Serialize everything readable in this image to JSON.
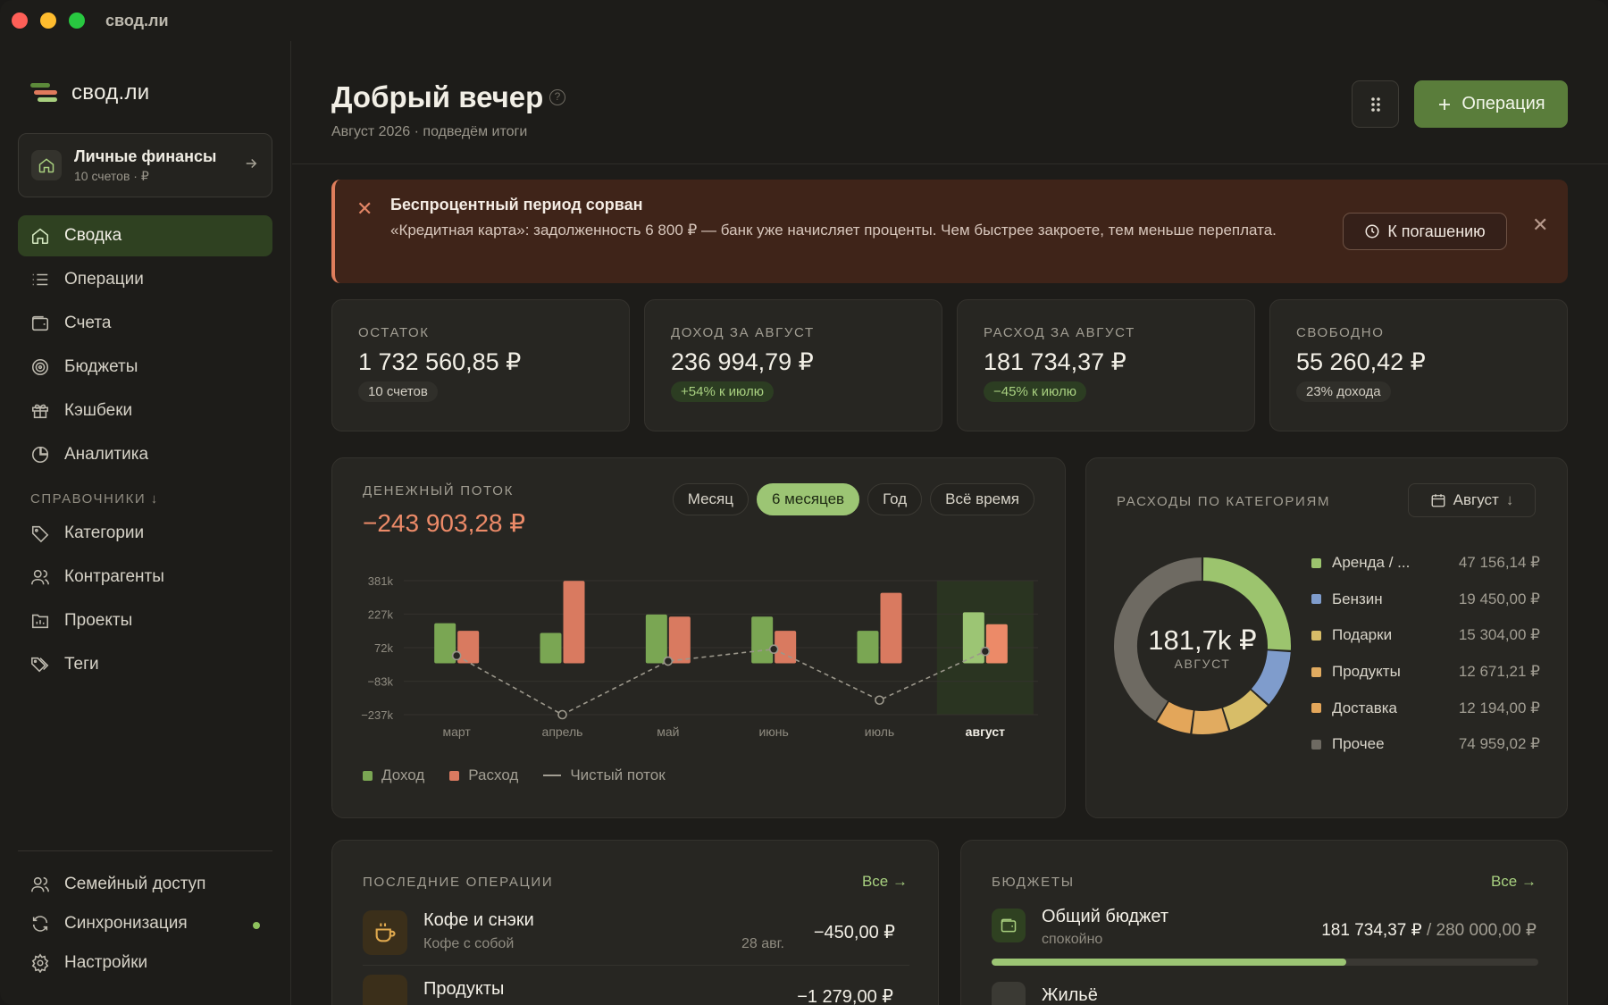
{
  "window": {
    "title": "свод.ли"
  },
  "sidebar": {
    "logo": "свод.ли",
    "workspace": {
      "title": "Личные финансы",
      "subtitle": "10 счетов · ₽"
    },
    "items": [
      {
        "label": "Сводка",
        "icon": "home-icon"
      },
      {
        "label": "Операции",
        "icon": "list-icon"
      },
      {
        "label": "Счета",
        "icon": "wallet-icon"
      },
      {
        "label": "Бюджеты",
        "icon": "target-icon"
      },
      {
        "label": "Кэшбеки",
        "icon": "gift-icon"
      },
      {
        "label": "Аналитика",
        "icon": "pie-icon"
      }
    ],
    "section_label": "СПРАВОЧНИКИ",
    "ref_items": [
      {
        "label": "Категории",
        "icon": "tag-icon"
      },
      {
        "label": "Контрагенты",
        "icon": "users-icon"
      },
      {
        "label": "Проекты",
        "icon": "folder-chart-icon"
      },
      {
        "label": "Теги",
        "icon": "tags-icon"
      }
    ],
    "bottom_items": [
      {
        "label": "Семейный доступ",
        "icon": "users-icon"
      },
      {
        "label": "Синхронизация",
        "icon": "sync-icon"
      },
      {
        "label": "Настройки",
        "icon": "gear-icon"
      }
    ]
  },
  "header": {
    "title": "Добрый вечер",
    "subtitle": "Август 2026 · подведём итоги",
    "add_label": "Операция"
  },
  "alert": {
    "title": "Беспроцентный период сорван",
    "text": "«Кредитная карта»: задолженность 6 800 ₽ — банк уже начисляет проценты. Чем быстрее закроете, тем меньше переплата.",
    "action": "К погашению"
  },
  "kpis": [
    {
      "label": "ОСТАТОК",
      "value": "1 732 560,85 ₽",
      "badge": "10 счетов",
      "positive": false
    },
    {
      "label": "ДОХОД ЗА АВГУСТ",
      "value": "236 994,79 ₽",
      "badge": "+54% к июлю",
      "positive": true
    },
    {
      "label": "РАСХОД ЗА АВГУСТ",
      "value": "181 734,37 ₽",
      "badge": "−45% к июлю",
      "positive": true
    },
    {
      "label": "СВОБОДНО",
      "value": "55 260,42 ₽",
      "badge": "23% дохода",
      "positive": false
    }
  ],
  "cashflow": {
    "title": "ДЕНЕЖНЫЙ ПОТОК",
    "total": "−243 903,28 ₽",
    "periods": [
      "Месяц",
      "6 месяцев",
      "Год",
      "Всё время"
    ],
    "active_period": 1,
    "legend": {
      "income": "Доход",
      "expense": "Расход",
      "net": "Чистый поток"
    }
  },
  "chart_data": {
    "type": "bar",
    "categories": [
      "март",
      "апрель",
      "май",
      "июнь",
      "июль",
      "август"
    ],
    "highlight": "август",
    "y_ticks": [
      "381k",
      "227k",
      "72k",
      "−83k",
      "−237k"
    ],
    "y_tick_values": [
      381,
      227,
      72,
      -83,
      -237
    ],
    "ylim": [
      -237,
      381
    ],
    "series": [
      {
        "name": "Доход",
        "values": [
          185,
          140,
          225,
          215,
          150,
          235
        ],
        "color": "#7aa653"
      },
      {
        "name": "Расход",
        "values": [
          150,
          380,
          215,
          150,
          325,
          180
        ],
        "color": "#d97a60"
      },
      {
        "name": "Чистый поток",
        "values": [
          35,
          -237,
          10,
          65,
          -170,
          55
        ],
        "color": "#9b978b"
      }
    ]
  },
  "categories_card": {
    "title": "РАСХОДЫ ПО КАТЕГОРИЯМ",
    "month": "Август",
    "total": "181,7k ₽",
    "total_sub": "АВГУСТ",
    "items": [
      {
        "name": "Аренда / ...",
        "value": "47 156,14 ₽",
        "amount": 47156.14,
        "color": "#9cc46e"
      },
      {
        "name": "Бензин",
        "value": "19 450,00 ₽",
        "amount": 19450.0,
        "color": "#7f9ccc"
      },
      {
        "name": "Подарки",
        "value": "15 304,00 ₽",
        "amount": 15304.0,
        "color": "#d7bd68"
      },
      {
        "name": "Продукты",
        "value": "12 671,21 ₽",
        "amount": 12671.21,
        "color": "#e1ab60"
      },
      {
        "name": "Доставка",
        "value": "12 194,00 ₽",
        "amount": 12194.0,
        "color": "#e3a65a"
      },
      {
        "name": "Прочее",
        "value": "74 959,02 ₽",
        "amount": 74959.02,
        "color": "#6e6a62"
      }
    ]
  },
  "recent": {
    "title": "ПОСЛЕДНИЕ ОПЕРАЦИИ",
    "all": "Все →",
    "items": [
      {
        "title": "Кофе и снэки",
        "subtitle": "Кофе с собой",
        "date": "28 авг.",
        "amount": "−450,00 ₽"
      },
      {
        "title": "Продукты",
        "amount": "−1 279,00 ₽"
      }
    ]
  },
  "budgets": {
    "title": "БЮДЖЕТЫ",
    "all": "Все →",
    "items": [
      {
        "title": "Общий бюджет",
        "subtitle": "спокойно",
        "spent": "181 734,37 ₽",
        "limit": " / 280 000,00 ₽",
        "progress": 0.649
      },
      {
        "title": "Жильё"
      }
    ]
  }
}
